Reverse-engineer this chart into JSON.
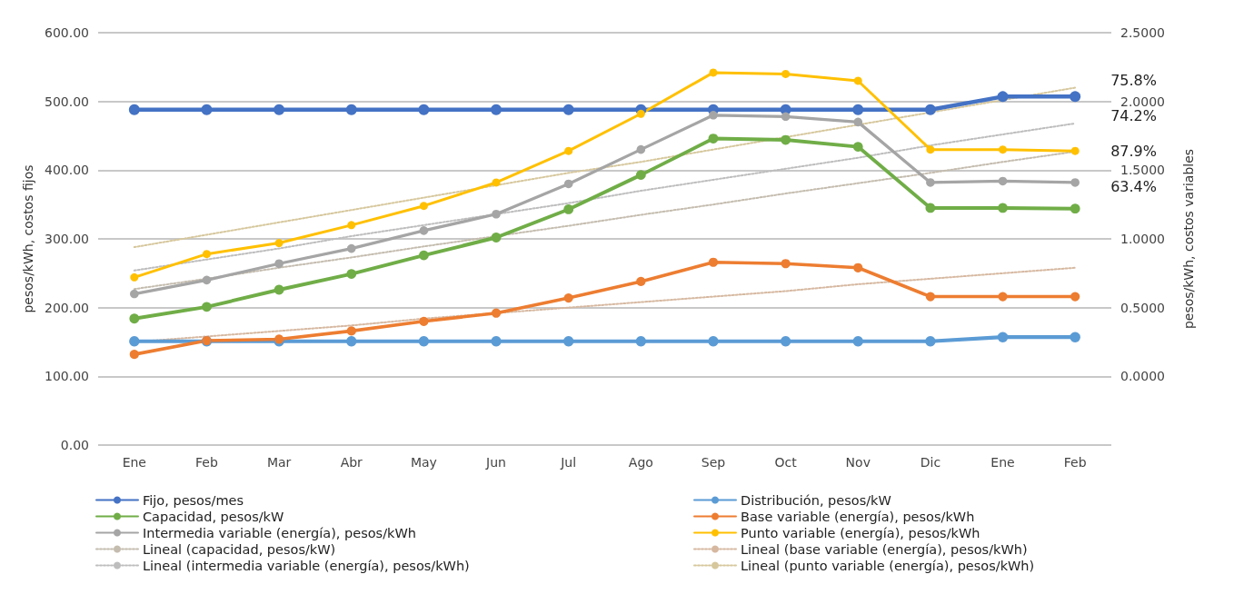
{
  "chart_data": {
    "type": "line",
    "categories": [
      "Ene",
      "Feb",
      "Mar",
      "Abr",
      "May",
      "Jun",
      "Jul",
      "Ago",
      "Sep",
      "Oct",
      "Nov",
      "Dic",
      "Ene",
      "Feb"
    ],
    "ylabel": "pesos/kWh, costos fijos",
    "y2label": "pesos/kWh, costos variables",
    "ylim": [
      0,
      600
    ],
    "yticks": [
      {
        "value": 0,
        "label": "0.00"
      },
      {
        "value": 100,
        "label": "100.00"
      },
      {
        "value": 200,
        "label": "200.00"
      },
      {
        "value": 300,
        "label": "300.00"
      },
      {
        "value": 400,
        "label": "400.00"
      },
      {
        "value": 500,
        "label": "500.00"
      },
      {
        "value": 600,
        "label": "600.00"
      }
    ],
    "y2lim": [
      -0.5,
      2.5
    ],
    "y2ticks": [
      {
        "value": 0,
        "label": "0.0000"
      },
      {
        "value": 0.5,
        "label": "0.5000"
      },
      {
        "value": 1,
        "label": "1.0000"
      },
      {
        "value": 1.5,
        "label": "1.5000"
      },
      {
        "value": 2,
        "label": "2.0000"
      },
      {
        "value": 2.5,
        "label": "2.5000"
      }
    ],
    "grid": "y",
    "legend": "bottom",
    "marker": "circle",
    "line_style": "solid",
    "annotations": [
      "75.8%",
      "74.2%",
      "87.9%",
      "63.4%"
    ],
    "series": [
      {
        "name": "Fijo, pesos/mes",
        "color": "#4472c4",
        "values": [
          488,
          488,
          488,
          488,
          488,
          488,
          488,
          488,
          488,
          488,
          488,
          488,
          507,
          507
        ]
      },
      {
        "name": "Distribución, pesos/kW",
        "color": "#5b9bd5",
        "values": [
          151,
          151,
          151,
          151,
          151,
          151,
          151,
          151,
          151,
          151,
          151,
          151,
          157,
          157
        ]
      },
      {
        "name": "Capacidad, pesos/kW",
        "color": "#70ad47",
        "values": [
          184,
          201,
          226,
          249,
          276,
          302,
          343,
          393,
          446,
          444,
          434,
          345,
          345,
          344
        ]
      },
      {
        "name": "Base variable (energía), pesos/kWh",
        "color": "#ed7d31",
        "axis": "y2",
        "values": [
          0.16,
          0.26,
          0.27,
          0.33,
          0.4,
          0.46,
          0.57,
          0.69,
          0.83,
          0.82,
          0.79,
          0.58,
          0.58,
          0.58
        ]
      },
      {
        "name": "Intermedia variable (energía), pesos/kWh",
        "color": "#a5a5a5",
        "axis": "y2",
        "values": [
          0.6,
          0.7,
          0.82,
          0.93,
          1.06,
          1.18,
          1.4,
          1.65,
          1.9,
          1.89,
          1.85,
          1.41,
          1.42,
          1.41
        ]
      },
      {
        "name": "Punto variable (energía), pesos/kWh",
        "color": "#ffc000",
        "axis": "y2",
        "values": [
          0.72,
          0.89,
          0.97,
          1.1,
          1.24,
          1.41,
          1.64,
          1.91,
          2.21,
          2.2,
          2.15,
          1.65,
          1.65,
          1.64
        ]
      },
      {
        "name": "Lineal (capacidad, pesos/kW)",
        "color": "#c4bcae",
        "marker": "none",
        "line_style": "dotted",
        "values": [
          227,
          242,
          258,
          273,
          289,
          304,
          319,
          335,
          350,
          366,
          381,
          396,
          412,
          427
        ]
      },
      {
        "name": "Lineal (base variable (energía), pesos/kWh)",
        "color": "#d6b8a0",
        "marker": "none",
        "line_style": "dotted",
        "axis": "y2",
        "values": [
          0.25,
          0.29,
          0.33,
          0.37,
          0.42,
          0.46,
          0.5,
          0.54,
          0.58,
          0.62,
          0.67,
          0.71,
          0.75,
          0.79
        ]
      },
      {
        "name": "Lineal (intermedia variable (energía), pesos/kWh)",
        "color": "#bdbdbd",
        "marker": "none",
        "line_style": "dotted",
        "axis": "y2",
        "values": [
          0.77,
          0.85,
          0.93,
          1.02,
          1.1,
          1.18,
          1.26,
          1.35,
          1.43,
          1.51,
          1.59,
          1.68,
          1.76,
          1.84
        ]
      },
      {
        "name": "Lineal (punto variable (energía), pesos/kWh)",
        "color": "#d6c79c",
        "marker": "none",
        "line_style": "dotted",
        "axis": "y2",
        "values": [
          0.94,
          1.03,
          1.12,
          1.21,
          1.3,
          1.39,
          1.48,
          1.56,
          1.65,
          1.74,
          1.83,
          1.92,
          2.01,
          2.1
        ]
      }
    ]
  }
}
